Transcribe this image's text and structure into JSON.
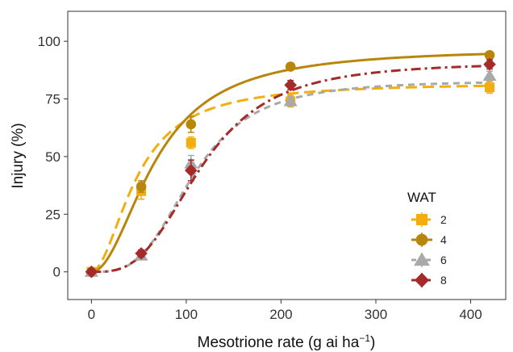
{
  "chart_data": {
    "type": "line",
    "xlabel": "Mesotrione rate (g ai ha",
    "xlabel_sup": "−1",
    "xlabel_close": ")",
    "ylabel": "Injury (%)",
    "xlim": [
      -25,
      437
    ],
    "ylim": [
      -12,
      113
    ],
    "xticks": [
      0,
      100,
      200,
      300,
      400
    ],
    "yticks": [
      0,
      25,
      50,
      75,
      100
    ],
    "grid": false,
    "legend_title": "WAT",
    "legend_placement": "bottom-right",
    "series": [
      {
        "name": "2",
        "color": "#F2AE0D",
        "marker": "square",
        "dash": "long-dash",
        "x": [
          0,
          52.5,
          105,
          210,
          420
        ],
        "y": [
          0,
          35,
          56,
          74,
          80
        ],
        "err": [
          0,
          3.5,
          2.5,
          2.5,
          2.5
        ],
        "curve": {
          "model": "log-logistic",
          "upper": 82,
          "ed50": 48,
          "slope": 1.9
        }
      },
      {
        "name": "4",
        "color": "#B8860B",
        "marker": "circle",
        "dash": "solid",
        "x": [
          0,
          52.5,
          105,
          210,
          420
        ],
        "y": [
          0,
          37,
          64,
          89,
          94
        ],
        "err": [
          0,
          2.5,
          3.5,
          1.5,
          1
        ],
        "curve": {
          "model": "log-logistic",
          "upper": 97,
          "ed50": 68,
          "slope": 2.0
        }
      },
      {
        "name": "6",
        "color": "#A9A9A9",
        "marker": "triangle",
        "dash": "short-dash",
        "x": [
          0,
          52.5,
          105,
          210,
          420
        ],
        "y": [
          0,
          7,
          47,
          74,
          85
        ],
        "err": [
          0,
          1.5,
          3.5,
          2,
          2
        ],
        "curve": {
          "model": "log-logistic",
          "upper": 83,
          "ed50": 107,
          "slope": 3.3
        }
      },
      {
        "name": "8",
        "color": "#A52A2A",
        "marker": "diamond",
        "dash": "dash-dot",
        "x": [
          0,
          52.5,
          105,
          210,
          420
        ],
        "y": [
          0,
          8,
          44,
          81,
          90
        ],
        "err": [
          0,
          1.5,
          4.5,
          2,
          2
        ],
        "curve": {
          "model": "log-logistic",
          "upper": 91,
          "ed50": 116,
          "slope": 3.1
        }
      }
    ]
  }
}
